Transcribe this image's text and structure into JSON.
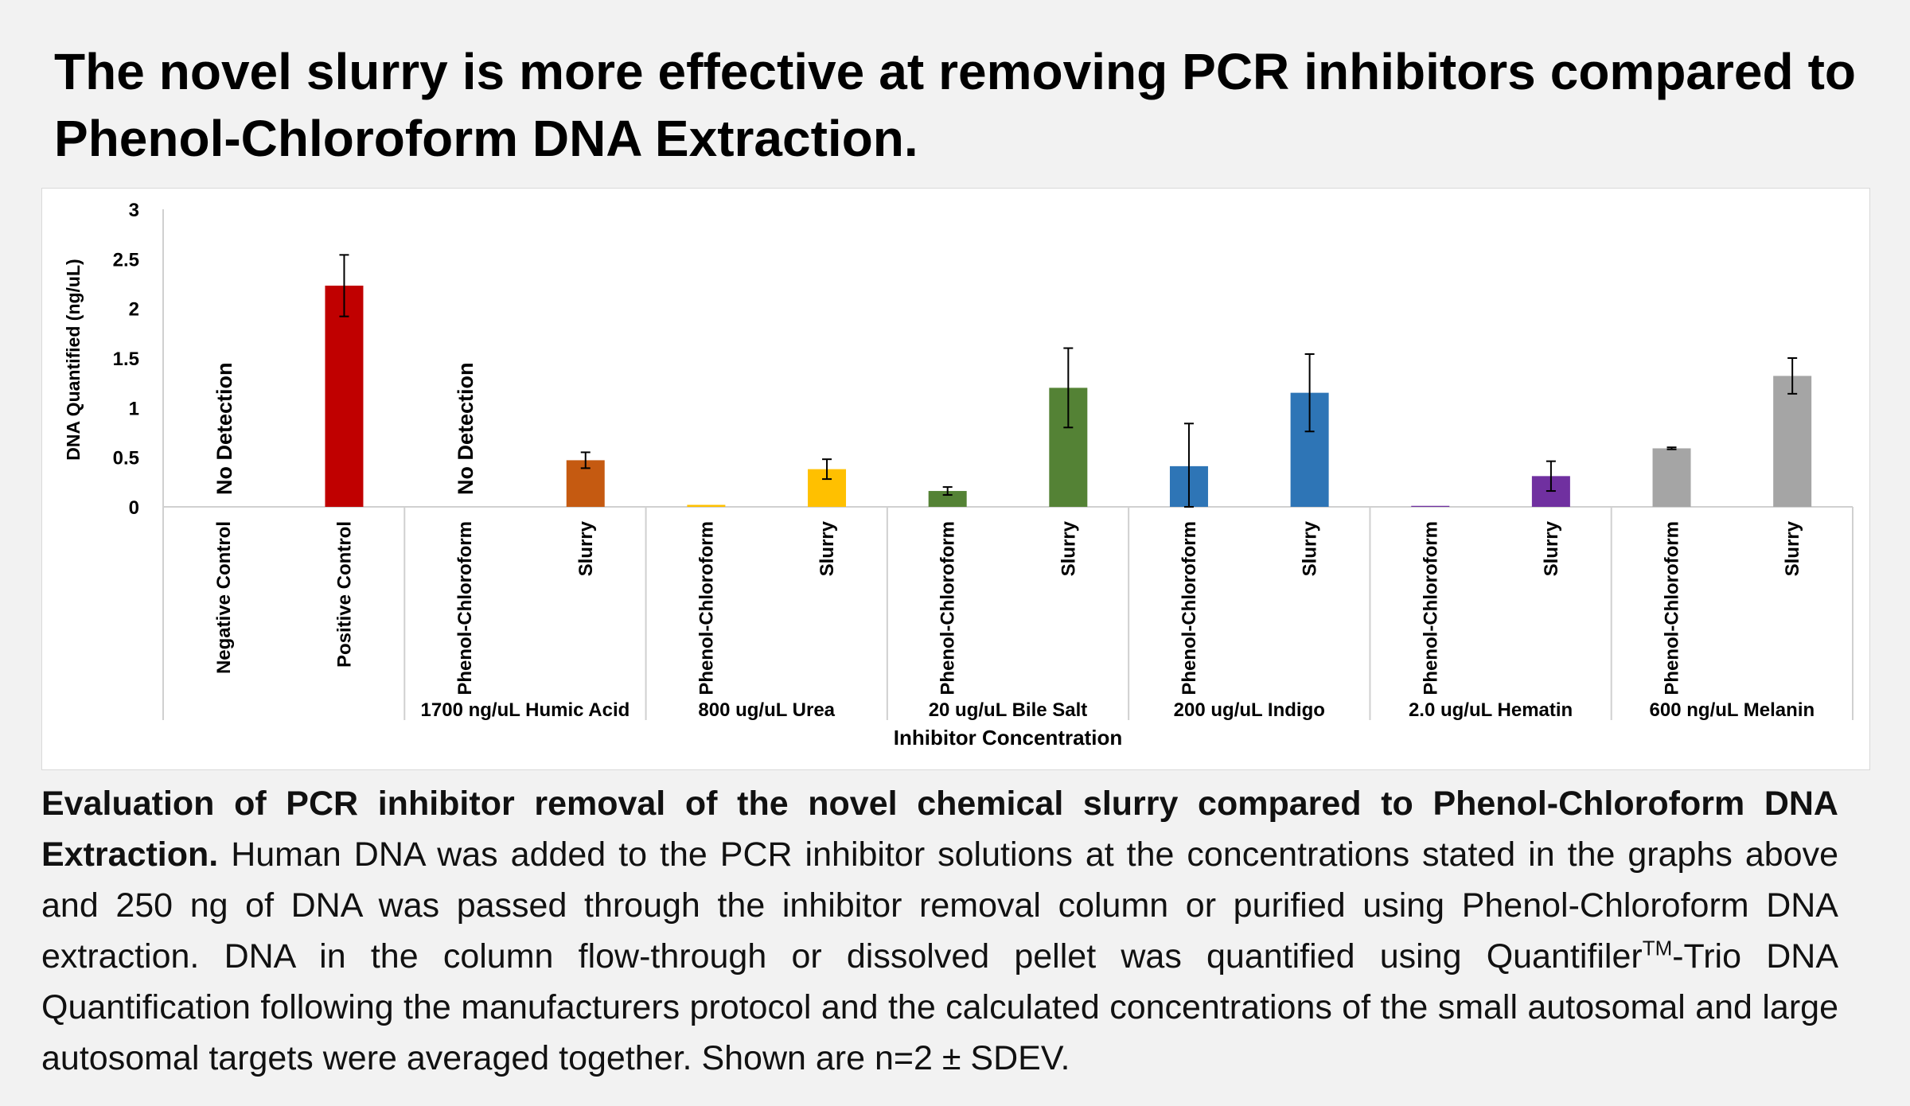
{
  "title": "The novel slurry is more effective at removing PCR inhibitors compared to Phenol-Chloroform DNA Extraction.",
  "caption": {
    "bold": "Evaluation of PCR inhibitor removal of the novel chemical slurry compared to Phenol-Chloroform DNA Extraction.",
    "text1": " Human DNA was added to the PCR inhibitor solutions at the concentrations stated in the graphs above and 250 ng of DNA was passed through the inhibitor removal column or purified using Phenol-Chloroform DNA extraction. DNA in the column flow-through or dissolved pellet was quantified using Quantifiler",
    "tm": "TM",
    "text2": "-Trio DNA Quantification following the manufacturers protocol and the calculated concentrations of the small autosomal and large autosomal targets were averaged together. Shown are n=2 ± SDEV."
  },
  "chart_data": {
    "type": "bar",
    "ylabel": "DNA Quantified (ng/uL)",
    "xlabel": "Inhibitor Concentration",
    "ylim": [
      0,
      3
    ],
    "yticks": [
      "0",
      "0.5",
      "1",
      "1.5",
      "2",
      "2.5",
      "3"
    ],
    "grid": false,
    "groups": [
      {
        "label": "",
        "span": 2
      },
      {
        "label": "1700 ng/uL Humic Acid",
        "span": 2
      },
      {
        "label": "800 ug/uL Urea",
        "span": 2
      },
      {
        "label": "20 ug/uL Bile Salt",
        "span": 2
      },
      {
        "label": "200 ug/uL Indigo",
        "span": 2
      },
      {
        "label": "2.0 ug/uL Hematin",
        "span": 2
      },
      {
        "label": "600 ng/uL Melanin",
        "span": 2
      }
    ],
    "bars": [
      {
        "category": "Negative Control",
        "value": 0,
        "error": 0,
        "color": "#c00000",
        "annotation": "No Detection"
      },
      {
        "category": "Positive Control",
        "value": 2.23,
        "error": 0.31,
        "color": "#c00000"
      },
      {
        "category": "Phenol-Chloroform",
        "value": 0,
        "error": 0,
        "color": "#c55a11",
        "annotation": "No Detection"
      },
      {
        "category": "Slurry",
        "value": 0.47,
        "error": 0.08,
        "color": "#c55a11"
      },
      {
        "category": "Phenol-Chloroform",
        "value": 0.02,
        "error": 0,
        "color": "#ffc000"
      },
      {
        "category": "Slurry",
        "value": 0.38,
        "error": 0.1,
        "color": "#ffc000"
      },
      {
        "category": "Phenol-Chloroform",
        "value": 0.16,
        "error": 0.04,
        "color": "#548235"
      },
      {
        "category": "Slurry",
        "value": 1.2,
        "error": 0.4,
        "color": "#548235"
      },
      {
        "category": "Phenol-Chloroform",
        "value": 0.41,
        "error": 0.43,
        "color": "#2e75b6"
      },
      {
        "category": "Slurry",
        "value": 1.15,
        "error": 0.39,
        "color": "#2e75b6"
      },
      {
        "category": "Phenol-Chloroform",
        "value": 0.01,
        "error": 0,
        "color": "#7030a0"
      },
      {
        "category": "Slurry",
        "value": 0.31,
        "error": 0.15,
        "color": "#7030a0"
      },
      {
        "category": "Phenol-Chloroform",
        "value": 0.59,
        "error": 0.01,
        "color": "#a5a5a5"
      },
      {
        "category": "Slurry",
        "value": 1.32,
        "error": 0.18,
        "color": "#a5a5a5"
      }
    ]
  }
}
